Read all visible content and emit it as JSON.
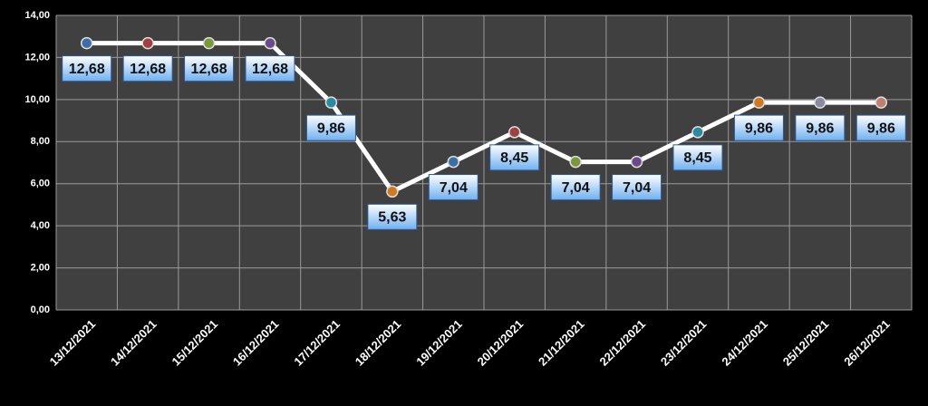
{
  "chart_data": {
    "type": "line",
    "categories": [
      "13/12/2021",
      "14/12/2021",
      "15/12/2021",
      "16/12/2021",
      "17/12/2021",
      "18/12/2021",
      "19/12/2021",
      "20/12/2021",
      "21/12/2021",
      "22/12/2021",
      "23/12/2021",
      "24/12/2021",
      "25/12/2021",
      "26/12/2021"
    ],
    "values": [
      12.68,
      12.68,
      12.68,
      12.68,
      9.86,
      5.63,
      7.04,
      8.45,
      7.04,
      7.04,
      8.45,
      9.86,
      9.86,
      9.86
    ],
    "value_labels": [
      "12,68",
      "12,68",
      "12,68",
      "12,68",
      "9,86",
      "5,63",
      "7,04",
      "8,45",
      "7,04",
      "7,04",
      "8,45",
      "9,86",
      "9,86",
      "9,86"
    ],
    "color": "#ffffff",
    "marker_colors": [
      "#3a6ea5",
      "#a04040",
      "#7a9a3a",
      "#6a4a8a",
      "#2a8aa0",
      "#d07a20",
      "#3a6ea5",
      "#a04040",
      "#7a9a3a",
      "#6a4a8a",
      "#2a8aa0",
      "#d07a20",
      "#8a8aa0",
      "#c08070"
    ],
    "ylim": [
      0,
      14
    ],
    "yticks": [
      {
        "value": 0,
        "label": "0,00"
      },
      {
        "value": 2,
        "label": "2,00"
      },
      {
        "value": 4,
        "label": "4,00"
      },
      {
        "value": 6,
        "label": "6,00"
      },
      {
        "value": 8,
        "label": "8,00"
      },
      {
        "value": 10,
        "label": "10,00"
      },
      {
        "value": 12,
        "label": "12,00"
      },
      {
        "value": 14,
        "label": "14,00"
      }
    ],
    "grid": true
  }
}
